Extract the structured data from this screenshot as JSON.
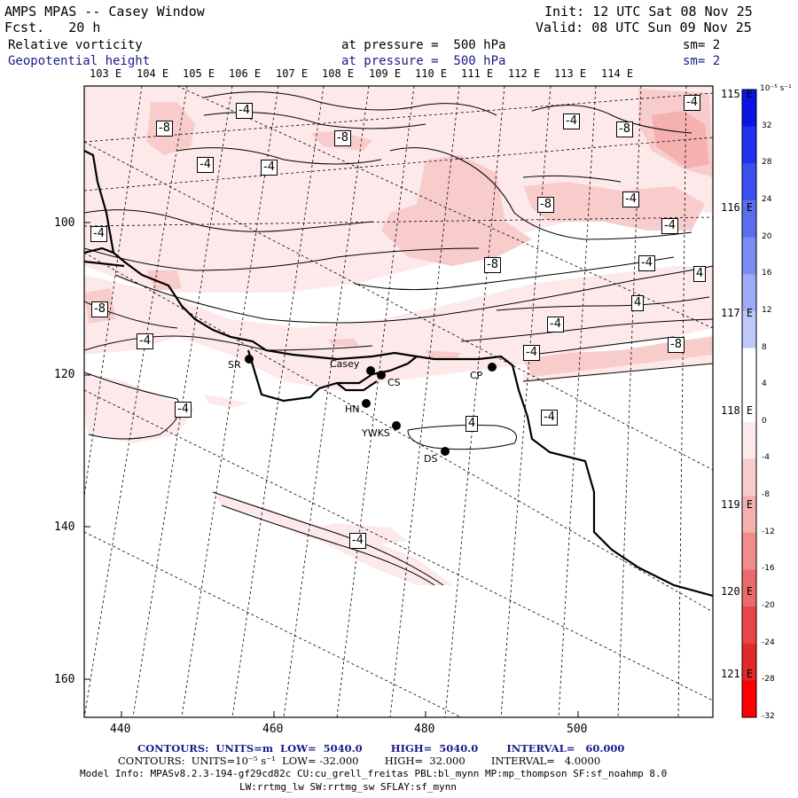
{
  "header": {
    "title": "AMPS MPAS -- Casey Window",
    "forecast": "Fcst.   20 h",
    "init": "Init: 12 UTC Sat 08 Nov 25",
    "valid": "Valid: 08 UTC Sun 09 Nov 25",
    "field1_name": "Relative vorticity",
    "field1_level": "at pressure =  500 hPa",
    "field1_smooth": "sm= 2",
    "field2_name": "Geopotential height",
    "field2_level": "at pressure =  500 hPa",
    "field2_smooth": "sm= 2"
  },
  "longitude_labels_top": [
    "103 E",
    "104 E",
    "105 E",
    "106 E",
    "107 E",
    "108 E",
    "109 E",
    "110 E",
    "111 E",
    "112 E",
    "113 E",
    "114 E"
  ],
  "longitude_labels_right": [
    "115 E",
    "116 E",
    "117 E",
    "118 E",
    "119 E",
    "120 E",
    "121 E"
  ],
  "y_axis_labels": [
    "100",
    "120",
    "140",
    "160"
  ],
  "x_axis_labels": [
    "440",
    "460",
    "480",
    "500"
  ],
  "colorbar": {
    "unit": "10⁻⁵ s⁻¹",
    "labels": [
      "32",
      "28",
      "24",
      "20",
      "16",
      "12",
      "8",
      "4",
      "0",
      "-4",
      "-8",
      "-12",
      "-16",
      "-20",
      "-24",
      "-28",
      "-32"
    ],
    "colors": [
      "#0a14e6",
      "#1e32f0",
      "#3c50f0",
      "#5a6ef0",
      "#7a8cf2",
      "#9cabf6",
      "#bec8fa",
      "#ffffff",
      "#ffffff",
      "#fde9e9",
      "#f9cccc",
      "#f5b0b0",
      "#f08c8c",
      "#ec6a6a",
      "#e84646",
      "#e42828",
      "#ff0000"
    ]
  },
  "contour_labels": [
    "-4",
    "-8",
    "-8",
    "-4",
    "-4",
    "-4",
    "-8",
    "-8",
    "-4",
    "-4",
    "-8",
    "-4",
    "4",
    "-4",
    "-8",
    "-4",
    "-8",
    "4",
    "-4",
    "-4",
    "-4",
    "-4",
    "-4",
    "4",
    "-4"
  ],
  "stations": [
    {
      "id": "SR",
      "label": "SR"
    },
    {
      "id": "casey",
      "label": "Casey"
    },
    {
      "id": "CS",
      "label": "CS"
    },
    {
      "id": "HN",
      "label": "HN"
    },
    {
      "id": "YWKS",
      "label": "YWKS"
    },
    {
      "id": "DS",
      "label": "DS"
    },
    {
      "id": "CP",
      "label": "CP"
    }
  ],
  "footer": {
    "line1": "CONTOURS:  UNITS=m  LOW=  5040.0        HIGH=  5040.0        INTERVAL=   60.000",
    "line2": "CONTOURS:  UNITS=10⁻⁵ s⁻¹  LOW= -32.000        HIGH=  32.000        INTERVAL=   4.0000",
    "line3": "Model Info: MPASv8.2.3-194-gf29cd82c CU:cu_grell_freitas PBL:bl_mynn MP:mp_thompson SF:sf_noahmp 8.0",
    "line4": "LW:rrtmg_lw SW:rrtmg_sw SFLAY:sf_mynn"
  }
}
